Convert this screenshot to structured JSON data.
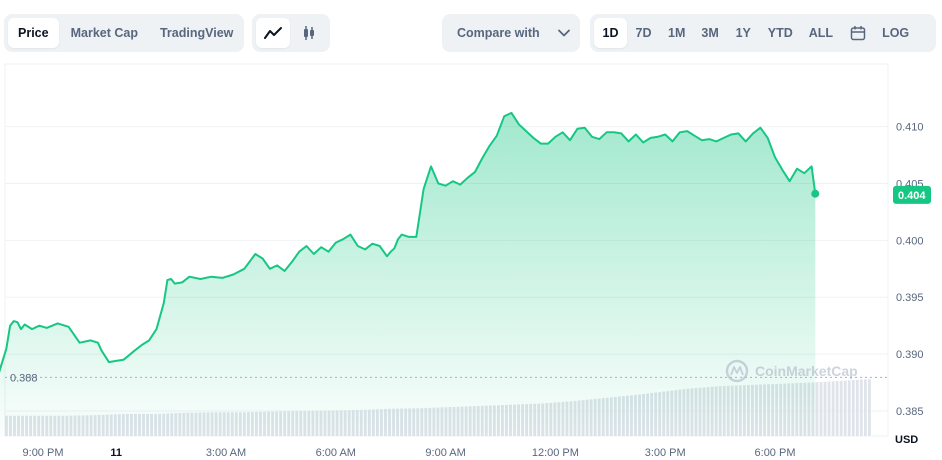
{
  "tabs": {
    "view": [
      "Price",
      "Market Cap",
      "TradingView"
    ],
    "active_view": "Price",
    "chart_types": [
      "line-chart-icon",
      "candlestick-icon"
    ],
    "compare_label": "Compare with",
    "ranges": [
      "1D",
      "7D",
      "1M",
      "3M",
      "1Y",
      "YTD",
      "ALL"
    ],
    "active_range": "1D",
    "log_label": "LOG"
  },
  "colors": {
    "line": "#16c784",
    "area_top": "#16c784",
    "current_label_bg": "#16c784",
    "grid": "#eff2f5",
    "volume": "#dfe3ea"
  },
  "watermark": "CoinMarketCap",
  "currency_label": "USD",
  "low_label": "0.388",
  "current_price_label": "0.404",
  "chart_data": {
    "type": "area",
    "title": "",
    "xlabel": "",
    "ylabel": "",
    "ylim": [
      0.3828,
      0.4155
    ],
    "y_ticks": [
      0.385,
      0.39,
      0.395,
      0.4,
      0.405,
      0.41
    ],
    "y_tick_labels": [
      "0.385",
      "0.390",
      "0.395",
      "0.400",
      "0.405",
      "0.410"
    ],
    "x_ticks": [
      {
        "t": -2,
        "label": "9:00 PM",
        "bold": false
      },
      {
        "t": 0,
        "label": "11",
        "bold": true
      },
      {
        "t": 3,
        "label": "3:00 AM",
        "bold": false
      },
      {
        "t": 6,
        "label": "6:00 AM",
        "bold": false
      },
      {
        "t": 9,
        "label": "9:00 AM",
        "bold": false
      },
      {
        "t": 12,
        "label": "12:00 PM",
        "bold": false
      },
      {
        "t": 15,
        "label": "3:00 PM",
        "bold": false
      },
      {
        "t": 18,
        "label": "6:00 PM",
        "bold": false
      }
    ],
    "x_unit": "hours from 00:00 of day 11",
    "series": [
      {
        "x": [
          -3.2,
          -3.0,
          -2.9,
          -2.8,
          -2.7,
          -2.6,
          -2.5,
          -2.3,
          -2.1,
          -1.9,
          -1.6,
          -1.3,
          -1.0,
          -0.7,
          -0.5,
          -0.4,
          -0.2,
          0.0,
          0.2,
          0.5,
          0.7,
          0.9,
          1.1,
          1.3,
          1.4,
          1.5,
          1.6,
          1.8,
          2.0,
          2.3,
          2.6,
          2.9,
          3.2,
          3.5,
          3.8,
          4.0,
          4.2,
          4.4,
          4.6,
          4.8,
          5.0,
          5.2,
          5.4,
          5.6,
          5.8,
          6.0,
          6.2,
          6.4,
          6.6,
          6.8,
          7.0,
          7.2,
          7.4,
          7.5,
          7.6,
          7.7,
          7.8,
          8.0,
          8.2,
          8.4,
          8.6,
          8.8,
          9.0,
          9.2,
          9.4,
          9.6,
          9.8,
          10.0,
          10.2,
          10.4,
          10.6,
          10.8,
          11.0,
          11.2,
          11.4,
          11.6,
          11.8,
          12.0,
          12.2,
          12.4,
          12.6,
          12.8,
          13.0,
          13.2,
          13.4,
          13.6,
          13.8,
          14.0,
          14.2,
          14.4,
          14.6,
          14.8,
          15.0,
          15.2,
          15.4,
          15.6,
          15.8,
          16.0,
          16.2,
          16.4,
          16.6,
          16.8,
          17.0,
          17.2,
          17.4,
          17.6,
          17.8,
          18.0,
          18.2,
          18.4,
          18.6,
          18.8,
          19.0,
          19.1
        ],
        "y": [
          0.3884,
          0.3905,
          0.3925,
          0.3929,
          0.3928,
          0.3922,
          0.3926,
          0.3922,
          0.3925,
          0.3923,
          0.3927,
          0.3924,
          0.391,
          0.3912,
          0.391,
          0.3903,
          0.3893,
          0.3894,
          0.3895,
          0.3903,
          0.3908,
          0.3912,
          0.3922,
          0.3945,
          0.3965,
          0.3966,
          0.3962,
          0.3963,
          0.3968,
          0.3966,
          0.3968,
          0.3967,
          0.397,
          0.3975,
          0.3988,
          0.3984,
          0.3975,
          0.3978,
          0.3973,
          0.3981,
          0.399,
          0.3995,
          0.3988,
          0.3994,
          0.399,
          0.3998,
          0.4001,
          0.4005,
          0.3995,
          0.3992,
          0.3997,
          0.3995,
          0.3986,
          0.399,
          0.3993,
          0.4001,
          0.4005,
          0.4003,
          0.4003,
          0.4045,
          0.4065,
          0.405,
          0.4048,
          0.4052,
          0.4049,
          0.4055,
          0.406,
          0.4072,
          0.4083,
          0.4092,
          0.4109,
          0.4112,
          0.4102,
          0.4096,
          0.409,
          0.4085,
          0.4085,
          0.4091,
          0.4095,
          0.4088,
          0.4098,
          0.4099,
          0.4091,
          0.4089,
          0.4095,
          0.4095,
          0.4094,
          0.4087,
          0.4093,
          0.4086,
          0.409,
          0.4091,
          0.4093,
          0.4087,
          0.4095,
          0.4096,
          0.4092,
          0.4088,
          0.4089,
          0.4087,
          0.409,
          0.4093,
          0.4094,
          0.4087,
          0.4094,
          0.4099,
          0.409,
          0.4073,
          0.4062,
          0.4052,
          0.4063,
          0.4059,
          0.4065,
          0.4041
        ]
      }
    ],
    "low": 0.388,
    "current": 0.404,
    "volume": {
      "type": "bar",
      "values_relative": [
        0.35,
        0.35,
        0.35,
        0.36,
        0.38,
        0.38,
        0.4,
        0.41,
        0.41,
        0.42,
        0.43,
        0.44,
        0.45,
        0.47,
        0.48,
        0.5,
        0.52,
        0.54,
        0.56,
        0.6,
        0.65,
        0.7,
        0.76,
        0.82,
        0.86,
        0.88,
        0.9,
        0.92,
        0.95,
        0.98
      ]
    }
  }
}
